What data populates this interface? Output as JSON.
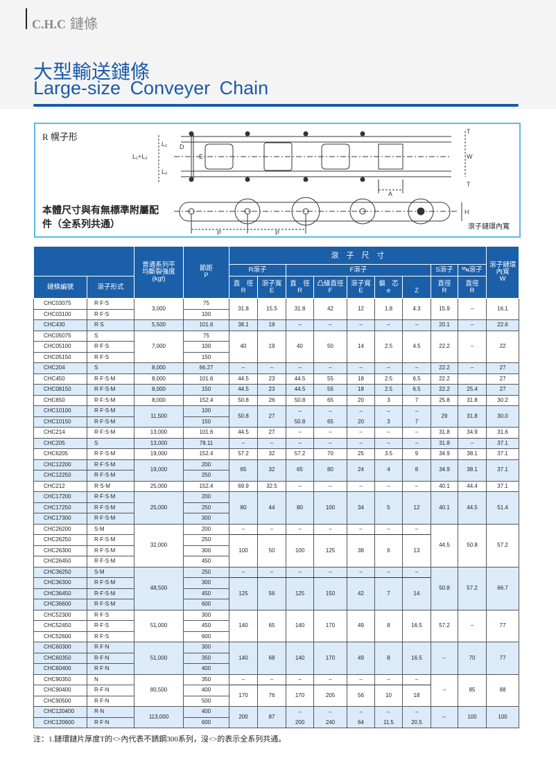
{
  "header": {
    "brand_logo": "C.H.C",
    "brand_text": "鏈條",
    "title_cn": "大型輸送鏈條",
    "title_en": "Large-size  Conveyer  Chain"
  },
  "diagram": {
    "roller_type_label": "R 幌子形",
    "body_note": "本體尺寸與有無標準附屬配件（全系列共通）",
    "inner_width_label": "滾子鏈環內寬",
    "dim_labels": {
      "l1l2": "L₁+L₂",
      "l1": "L₁",
      "l2": "L₂",
      "d": "D",
      "e": "E",
      "t": "T",
      "w": "W",
      "a": "A",
      "h": "H",
      "p": "P"
    }
  },
  "table": {
    "headers": {
      "chain_no": "鏈條編號",
      "roller_form": "滾子形式",
      "strength": "普通系列平均斷裂強度 (kgf)",
      "pitch": "節距",
      "pitch_sym": "P",
      "roller_dims": "滾　子　尺　寸",
      "r_roller": "R滾子",
      "f_roller": "F滾子",
      "s_roller": "S滾子",
      "mn_roller": "ᴹɴ滾子",
      "inner_width": "滾子鏈環內寬",
      "inner_width_sym": "W",
      "sub": [
        {
          "top": "直　徑",
          "sym": "R"
        },
        {
          "top": "滾子寬",
          "sym": "E"
        },
        {
          "top": "直　徑",
          "sym": "R"
        },
        {
          "top": "凸緣直徑",
          "sym": "F"
        },
        {
          "top": "滾子寬",
          "sym": "E"
        },
        {
          "top": "偏　芯",
          "sym": "e"
        },
        {
          "top": "",
          "sym": "Z"
        },
        {
          "top": "直徑",
          "sym": "R"
        },
        {
          "top": "直徑",
          "sym": "R"
        }
      ]
    },
    "groups": [
      {
        "chains": [
          [
            "CHC03075",
            "R‧F‧S",
            "75"
          ],
          [
            "CHC03100",
            "R‧F‧S",
            "100"
          ]
        ],
        "strength": "3,000",
        "dims": [
          "31.8",
          "15.5",
          "31.8",
          "42",
          "12",
          "1.8",
          "4.3",
          "15.9",
          "–",
          "16.1"
        ]
      },
      {
        "chains": [
          [
            "CHC430",
            "R‧S",
            "101.6"
          ]
        ],
        "strength": "5,500",
        "dims": [
          "38.1",
          "19",
          "–",
          "–",
          "–",
          "–",
          "–",
          "20.1",
          "–",
          "22.6"
        ]
      },
      {
        "chains": [
          [
            "CHC05075",
            "S",
            "75"
          ],
          [
            "CHC05100",
            "R‧F‧S",
            "100"
          ],
          [
            "CHC05150",
            "R‧F‧S",
            "150"
          ]
        ],
        "strength": "7,000",
        "dims": [
          "40",
          "19",
          "40",
          "50",
          "14",
          "2.5",
          "4.5",
          "22.2",
          "–",
          "22"
        ]
      },
      {
        "chains": [
          [
            "CHC204",
            "S",
            "66.27"
          ]
        ],
        "strength": "8,000",
        "dims": [
          "–",
          "–",
          "–",
          "–",
          "–",
          "–",
          "–",
          "22.2",
          "–",
          "27"
        ]
      },
      {
        "chains": [
          [
            "CHC450",
            "R‧F‧S‧M",
            "101.6"
          ]
        ],
        "strength": "8,000",
        "dims": [
          "44.5",
          "23",
          "44.5",
          "55",
          "18",
          "2.5",
          "6.5",
          "22.2",
          "",
          "27"
        ]
      },
      {
        "chains": [
          [
            "CHC08150",
            "R‧F‧S‧M",
            "150"
          ]
        ],
        "strength": "8,000",
        "dims": [
          "44.5",
          "23",
          "44.5",
          "55",
          "18",
          "2.5",
          "6.5",
          "22.2",
          "25.4",
          "27"
        ]
      },
      {
        "chains": [
          [
            "CHC650",
            "R‧F‧S‧M",
            "152.4"
          ]
        ],
        "strength": "8,000",
        "dims": [
          "50.8",
          "26",
          "50.8",
          "65",
          "20",
          "3",
          "7",
          "25.8",
          "31.8",
          "30.2"
        ]
      },
      {
        "chains": [
          [
            "CHC10100",
            "R‧F‧S‧M",
            "100"
          ],
          [
            "CHC10150",
            "R‧F‧S‧M",
            "150"
          ]
        ],
        "strength": "11,500",
        "split_divider": false,
        "dims": [
          "50.8",
          "27",
          [
            "–",
            "50.8"
          ],
          [
            "–",
            "65"
          ],
          [
            "–",
            "20"
          ],
          [
            "–",
            "3"
          ],
          [
            "–",
            "7"
          ],
          "29",
          "31.8",
          "30.0"
        ]
      },
      {
        "chains": [
          [
            "CHC214",
            "R‧F‧S‧M",
            "101.6"
          ]
        ],
        "strength": "13,000",
        "dims": [
          "44.5",
          "27",
          "–",
          "–",
          "–",
          "–",
          "–",
          "31.8",
          "34.9",
          "31.6"
        ]
      },
      {
        "chains": [
          [
            "CHC205",
            "S",
            "78.11"
          ]
        ],
        "strength": "13,000",
        "dims": [
          "–",
          "–",
          "–",
          "–",
          "–",
          "–",
          "–",
          "31.8",
          "–",
          "37.1"
        ]
      },
      {
        "chains": [
          [
            "CHC6205",
            "R‧F‧S‧M",
            "152.4"
          ]
        ],
        "strength": "19,000",
        "dims": [
          "57.2",
          "32",
          "57.2",
          "70",
          "25",
          "3.5",
          "9",
          "34.9",
          "38.1",
          "37.1"
        ]
      },
      {
        "chains": [
          [
            "CHC12200",
            "R‧F‧S‧M",
            "200"
          ],
          [
            "CHC12250",
            "R‧F‧S‧M",
            "250"
          ]
        ],
        "strength": "19,000",
        "dims": [
          "65",
          "32",
          "65",
          "80",
          "24",
          "4",
          "8",
          "34.9",
          "38.1",
          "37.1"
        ]
      },
      {
        "chains": [
          [
            "CHC212",
            "R‧S‧M",
            "152.4"
          ]
        ],
        "strength": "25,000",
        "dims": [
          "69.9",
          "32.5",
          "–",
          "–",
          "–",
          "–",
          "–",
          "40.1",
          "44.4",
          "37.1"
        ]
      },
      {
        "chains": [
          [
            "CHC17200",
            "R‧F‧S‧M",
            "200"
          ],
          [
            "CHC17250",
            "R‧F‧S‧M",
            "250"
          ],
          [
            "CHC17300",
            "R‧F‧S‧M",
            "300"
          ]
        ],
        "strength": "25,000",
        "dims": [
          "80",
          "44",
          "80",
          "100",
          "34",
          "5",
          "12",
          "40.1",
          "44.5",
          "51.4"
        ]
      },
      {
        "chains": [
          [
            "CHC26200",
            "S‧M",
            "200"
          ],
          [
            "CHC26250",
            "R‧F‧S‧M",
            "250"
          ],
          [
            "CHC26300",
            "R‧F‧S‧M",
            "300"
          ],
          [
            "CHC26450",
            "R‧F‧S‧M",
            "450"
          ]
        ],
        "strength": "32,000",
        "split_divider": true,
        "dims": [
          [
            "–",
            "100"
          ],
          [
            "–",
            "50"
          ],
          [
            "–",
            "100"
          ],
          [
            "–",
            "125"
          ],
          [
            "–",
            "38"
          ],
          [
            "–",
            "6"
          ],
          [
            "–",
            "13"
          ],
          "44.5",
          "50.8",
          "57.2"
        ]
      },
      {
        "chains": [
          [
            "CHC36250",
            "S‧M",
            "250"
          ],
          [
            "CHC36300",
            "R‧F‧S‧M",
            "300"
          ],
          [
            "CHC36450",
            "R‧F‧S‧M",
            "450"
          ],
          [
            "CHC36600",
            "R‧F‧S‧M",
            "600"
          ]
        ],
        "strength": "48,500",
        "split_divider": true,
        "dims": [
          [
            "–",
            "125"
          ],
          [
            "–",
            "56"
          ],
          [
            "–",
            "125"
          ],
          [
            "–",
            "150"
          ],
          [
            "–",
            "42"
          ],
          [
            "–",
            "7"
          ],
          [
            "–",
            "14"
          ],
          "50.8",
          "57.2",
          "66.7"
        ]
      },
      {
        "chains": [
          [
            "CHC52300",
            "R‧F‧S",
            "300"
          ],
          [
            "CHC52450",
            "R‧F‧S",
            "450"
          ],
          [
            "CHC52600",
            "R‧F‧S",
            "600"
          ]
        ],
        "strength": "51,000",
        "dims": [
          "140",
          "65",
          "140",
          "170",
          "49",
          "8",
          "16.5",
          "57.2",
          "–",
          "77"
        ]
      },
      {
        "chains": [
          [
            "CHC60300",
            "R‧F‧N",
            "300"
          ],
          [
            "CHC60350",
            "R‧F‧N",
            "350"
          ],
          [
            "CHC60400",
            "R‧F‧N",
            "400"
          ]
        ],
        "strength": "51,000",
        "dims": [
          "140",
          "68",
          "140",
          "170",
          "49",
          "8",
          "16.5",
          "–",
          "70",
          "77"
        ]
      },
      {
        "chains": [
          [
            "CHC90350",
            "N",
            "350"
          ],
          [
            "CHC90400",
            "R‧F‧N",
            "400"
          ],
          [
            "CHC90500",
            "R‧F‧N",
            "500"
          ]
        ],
        "strength": "80,500",
        "split_divider": true,
        "dims": [
          [
            "–",
            "170"
          ],
          [
            "–",
            "76"
          ],
          [
            "–",
            "170"
          ],
          [
            "–",
            "205"
          ],
          [
            "–",
            "56"
          ],
          [
            "–",
            "10"
          ],
          [
            "–",
            "18"
          ],
          "–",
          "85",
          "88"
        ]
      },
      {
        "chains": [
          [
            "CHC120400",
            "R‧N",
            "400"
          ],
          [
            "CHC120600",
            "R‧F‧N",
            "600"
          ]
        ],
        "strength": "113,000",
        "split_divider": false,
        "dims": [
          "200",
          "87",
          [
            "–",
            "200"
          ],
          [
            "–",
            "240"
          ],
          [
            "–",
            "64"
          ],
          [
            "–",
            "11.5"
          ],
          [
            "–",
            "20.5"
          ],
          "–",
          "100",
          "100"
        ]
      }
    ]
  },
  "note": "注：1.鏈環鏈片厚度T的<>內代表不銹鋼300系列，沒<>的表示全系列共通。",
  "colors": {
    "accent": "#1a5aa8",
    "header_bg": "#1a5fa8",
    "row_shade": "#dcebf9",
    "diagram_border": "#5ab8ea"
  }
}
